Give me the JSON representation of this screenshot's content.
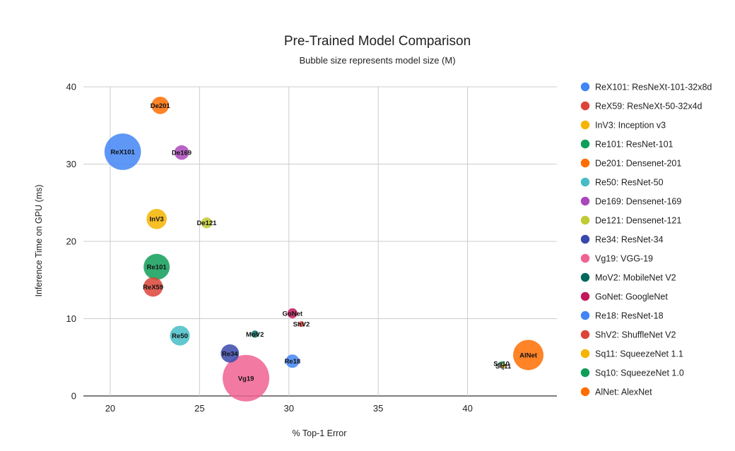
{
  "chart_data": {
    "type": "bubble",
    "title": "Pre-Trained Model Comparison",
    "subtitle": "Bubble size represents model size (M)",
    "xlabel": "% Top-1 Error",
    "ylabel": "Inference Time on GPU (ms)",
    "xlim": [
      18.5,
      45
    ],
    "ylim": [
      0,
      40
    ],
    "xticks": [
      20,
      25,
      30,
      35,
      40
    ],
    "yticks": [
      0,
      10,
      20,
      30,
      40
    ],
    "grid": true,
    "legend_position": "right",
    "series": [
      {
        "name": "ReX101: ResNeXt-101-32x8d",
        "label": "ReX101",
        "color": "#4285f4",
        "x": 20.7,
        "y": 31.6,
        "size": 88
      },
      {
        "name": "ReX59: ResNeXt-50-32x4d",
        "label": "ReX59",
        "color": "#db4437",
        "x": 22.4,
        "y": 14.1,
        "size": 25
      },
      {
        "name": "InV3: Inception v3",
        "label": "InV3",
        "color": "#f4b400",
        "x": 22.6,
        "y": 22.9,
        "size": 27
      },
      {
        "name": "Re101: ResNet-101",
        "label": "Re101",
        "color": "#0f9d58",
        "x": 22.6,
        "y": 16.7,
        "size": 45
      },
      {
        "name": "De201: Densenet-201",
        "label": "De201",
        "color": "#ff6d01",
        "x": 22.8,
        "y": 37.6,
        "size": 20
      },
      {
        "name": "Re50: ResNet-50",
        "label": "Re50",
        "color": "#46bdc6",
        "x": 23.9,
        "y": 7.8,
        "size": 26
      },
      {
        "name": "De169: Densenet-169",
        "label": "De169",
        "color": "#ab47bc",
        "x": 24.0,
        "y": 31.5,
        "size": 14
      },
      {
        "name": "De121: Densenet-121",
        "label": "De121",
        "color": "#c0ca33",
        "x": 25.4,
        "y": 22.4,
        "size": 8
      },
      {
        "name": "Re34: ResNet-34",
        "label": "Re34",
        "color": "#3949ab",
        "x": 26.7,
        "y": 5.5,
        "size": 22
      },
      {
        "name": "Vg19: VGG-19",
        "label": "Vg19",
        "color": "#f06292",
        "x": 27.6,
        "y": 2.3,
        "size": 144
      },
      {
        "name": "MoV2: MobileNet V2",
        "label": "MoV2",
        "color": "#00695c",
        "x": 28.1,
        "y": 8.0,
        "size": 3.5
      },
      {
        "name": "GoNet: GoogleNet",
        "label": "GoNet",
        "color": "#c2185b",
        "x": 30.2,
        "y": 10.7,
        "size": 6.6
      },
      {
        "name": "Re18: ResNet-18",
        "label": "Re18",
        "color": "#4285f4",
        "x": 30.2,
        "y": 4.5,
        "size": 12
      },
      {
        "name": "ShV2: ShuffleNet V2",
        "label": "ShV2",
        "color": "#db4437",
        "x": 30.7,
        "y": 9.3,
        "size": 2.3
      },
      {
        "name": "Sq11: SqueezeNet 1.1",
        "label": "Sq11",
        "color": "#f4b400",
        "x": 42.0,
        "y": 3.9,
        "size": 1.2
      },
      {
        "name": "Sq10: SqueezeNet 1.0",
        "label": "Sq10",
        "color": "#0f9d58",
        "x": 41.9,
        "y": 4.2,
        "size": 1.25
      },
      {
        "name": "AlNet: AlexNet",
        "label": "AlNet",
        "color": "#ff6d01",
        "x": 43.4,
        "y": 5.3,
        "size": 61
      }
    ]
  }
}
